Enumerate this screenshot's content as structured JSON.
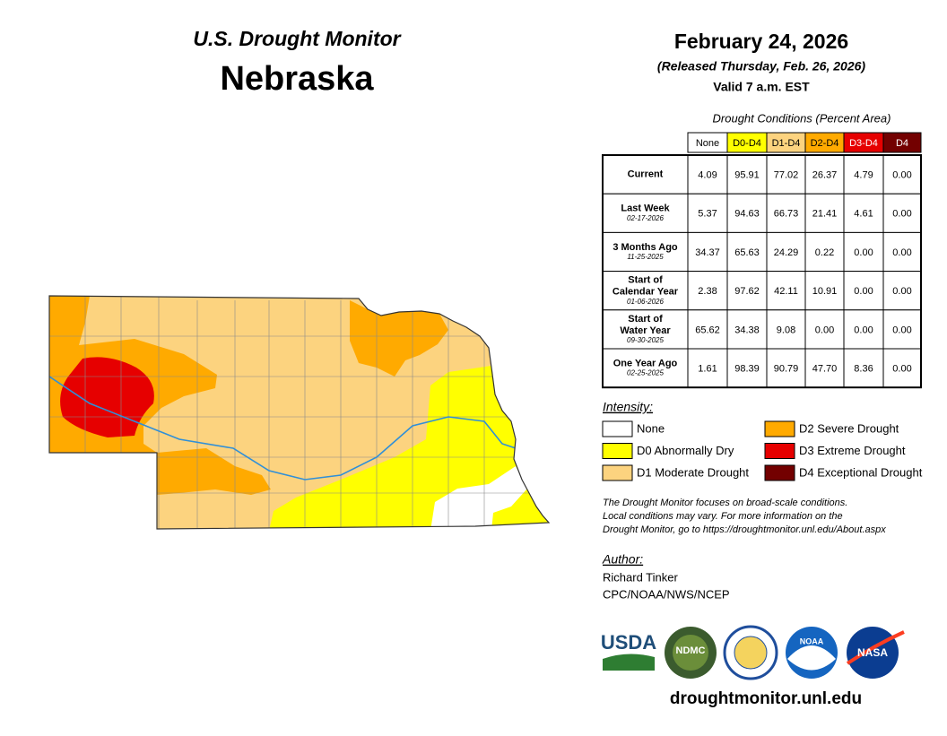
{
  "header": {
    "series_title": "U.S. Drought Monitor",
    "state": "Nebraska"
  },
  "dates": {
    "map_date": "February 24, 2026",
    "released": "(Released Thursday, Feb. 26, 2026)",
    "valid": "Valid 7 a.m. EST"
  },
  "table": {
    "caption": "Drought Conditions (Percent Area)",
    "columns": [
      {
        "label": "None",
        "color": "#ffffff"
      },
      {
        "label": "D0-D4",
        "color": "#ffff00"
      },
      {
        "label": "D1-D4",
        "color": "#fcd37f"
      },
      {
        "label": "D2-D4",
        "color": "#ffaa00"
      },
      {
        "label": "D3-D4",
        "color": "#e60000"
      },
      {
        "label": "D4",
        "color": "#730000"
      }
    ],
    "rows": [
      {
        "label": [
          "Current"
        ],
        "values": [
          "4.09",
          "95.91",
          "77.02",
          "26.37",
          "4.79",
          "0.00"
        ]
      },
      {
        "label": [
          "Last Week"
        ],
        "date": "02-17-2026",
        "values": [
          "5.37",
          "94.63",
          "66.73",
          "21.41",
          "4.61",
          "0.00"
        ]
      },
      {
        "label": [
          "3 Months Ago"
        ],
        "date": "11-25-2025",
        "values": [
          "34.37",
          "65.63",
          "24.29",
          "0.22",
          "0.00",
          "0.00"
        ]
      },
      {
        "label": [
          "Start of",
          "Calendar Year"
        ],
        "date": "01-06-2026",
        "values": [
          "2.38",
          "97.62",
          "42.11",
          "10.91",
          "0.00",
          "0.00"
        ]
      },
      {
        "label": [
          "Start of",
          "Water Year"
        ],
        "date": "09-30-2025",
        "values": [
          "65.62",
          "34.38",
          "9.08",
          "0.00",
          "0.00",
          "0.00"
        ]
      },
      {
        "label": [
          "One Year Ago"
        ],
        "date": "02-25-2025",
        "values": [
          "1.61",
          "98.39",
          "90.79",
          "47.70",
          "8.36",
          "0.00"
        ]
      }
    ]
  },
  "legend": {
    "title": "Intensity:",
    "items": [
      {
        "label": "None",
        "color": "#ffffff"
      },
      {
        "label": "D0 Abnormally Dry",
        "color": "#ffff00"
      },
      {
        "label": "D1 Moderate Drought",
        "color": "#fcd37f"
      },
      {
        "label": "D2 Severe Drought",
        "color": "#ffaa00"
      },
      {
        "label": "D3 Extreme Drought",
        "color": "#e60000"
      },
      {
        "label": "D4 Exceptional Drought",
        "color": "#730000"
      }
    ]
  },
  "note": [
    "The Drought Monitor focuses on broad-scale conditions.",
    "Local conditions may vary. For more information on the",
    "Drought Monitor, go to https://droughtmonitor.unl.edu/About.aspx"
  ],
  "author": {
    "heading": "Author:",
    "name": "Richard Tinker",
    "organization": "CPC/NOAA/NWS/NCEP"
  },
  "logos": {
    "usda": "USDA",
    "ndmc": "NDMC",
    "noaa": "NOAA",
    "nasa": "NASA"
  },
  "footer": {
    "url": "droughtmonitor.unl.edu"
  }
}
